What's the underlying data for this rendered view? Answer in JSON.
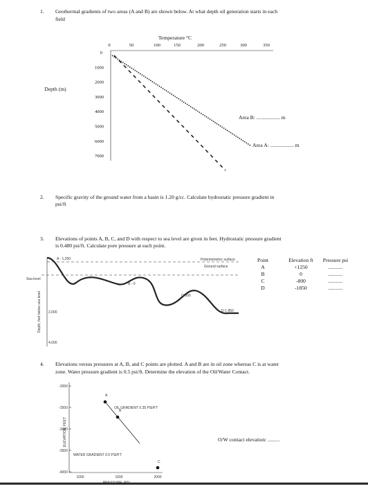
{
  "questions": [
    {
      "number": "1.",
      "lines": [
        "Geothermal gradients of two areas (A and B) are shown below. At what depth oil generation starts in each",
        "field"
      ],
      "figure": {
        "x_title": "Temperature °C",
        "x_ticks": [
          "0",
          "50",
          "100",
          "150",
          "200",
          "250",
          "300",
          "350"
        ],
        "y_title": "Depth (m)",
        "y_ticks": [
          "0",
          "1000",
          "2000",
          "3000",
          "4000",
          "5000",
          "6000",
          "7000"
        ],
        "answers": [
          "Area B: .................. m",
          "Area A: .................. m"
        ]
      }
    },
    {
      "number": "2.",
      "lines": [
        "Specific gravity of the ground water from a basin is 1.20 g/cc. Calculate hydrostatic pressure gradient in",
        "psi/ft"
      ]
    },
    {
      "number": "3.",
      "lines": [
        "Elevations of points A, B, C, and D with respect to sea level are given in feet. Hydrostatic pressure gradient",
        "is 0.480 psi/ft. Calculate pore pressure at each point."
      ],
      "figure": {
        "labels": [
          "A - 1,250",
          "Potentiometric surface",
          "Ground surface",
          "Sea level",
          "B - 0",
          "C-800",
          "D-1,850"
        ],
        "y_title": "Depth, feet below sea level",
        "y_ticks": [
          "2,000",
          "4,000"
        ]
      },
      "table": {
        "header": [
          "Point",
          "Elevation ft",
          "Pressure psi"
        ],
        "rows": [
          [
            "A",
            "+1250",
            "..........."
          ],
          [
            "B",
            "0",
            "..........."
          ],
          [
            "C",
            "-800",
            "..........."
          ],
          [
            "D",
            "-1850",
            "..........."
          ]
        ]
      }
    },
    {
      "number": "4.",
      "lines": [
        "Elevations versus pressures at A, B, and C points are plotted. A and B are in oil zone whereas C is at water",
        "zone. Water pressure gradient is 0.5 psi/ft. Determine the elevation of the Oil/Water Contact."
      ],
      "figure": {
        "y_ticks": [
          "-2000",
          "-2500",
          "-3000",
          "-3500",
          "-4000"
        ],
        "x_ticks": [
          "1000",
          "1500",
          "2000"
        ],
        "y_title": "ELEVATION, FEET",
        "x_title": "PRESSURE, PSI",
        "oil_gradient": "OIL GRADIENT 0.35 PSI/FT",
        "water_gradient": "WATER GRADIENT 0.5 PSI/FT",
        "points": [
          "A",
          "B",
          "C"
        ]
      },
      "answer": "O/W contact elevation: ........."
    }
  ]
}
